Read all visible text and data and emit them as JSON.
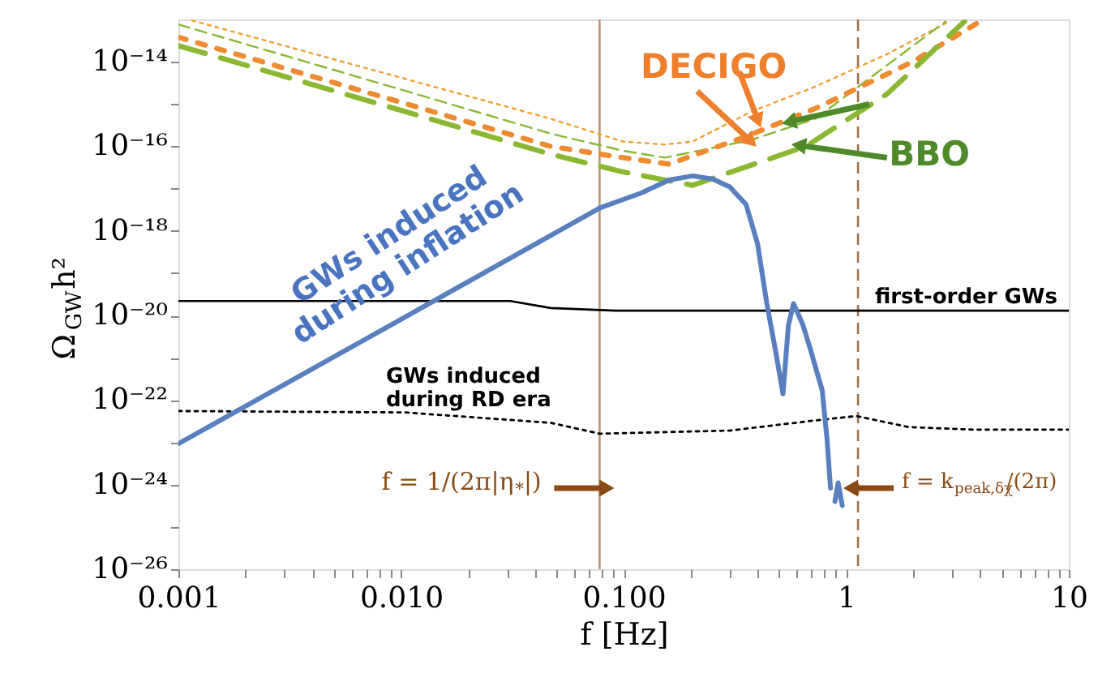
{
  "chart_data": {
    "type": "line",
    "xlabel": "f [Hz]",
    "ylabel": "Ω$_{GW}$h²",
    "log": "xy",
    "grid": false,
    "marker": "none",
    "xlim": [
      0.001,
      10
    ],
    "ylim": [
      1e-26,
      1e-13
    ],
    "xticks": [
      0.001,
      {
        "value": 0.002,
        "label": null
      },
      {
        "value": 0.003,
        "label": null
      },
      {
        "value": 0.004,
        "label": null
      },
      {
        "value": 0.005,
        "label": null
      },
      {
        "value": 0.006,
        "label": null
      },
      {
        "value": 0.007,
        "label": null
      },
      {
        "value": 0.008,
        "label": null
      },
      {
        "value": 0.009,
        "label": null
      },
      {
        "value": 0.01,
        "label": "0.010"
      },
      {
        "value": 0.02,
        "label": null
      },
      {
        "value": 0.03,
        "label": null
      },
      {
        "value": 0.04,
        "label": null
      },
      {
        "value": 0.05,
        "label": null
      },
      {
        "value": 0.06,
        "label": null
      },
      {
        "value": 0.07,
        "label": null
      },
      {
        "value": 0.08,
        "label": null
      },
      {
        "value": 0.09,
        "label": null
      },
      {
        "value": 0.1,
        "label": "0.100"
      },
      {
        "value": 0.2,
        "label": null
      },
      {
        "value": 0.3,
        "label": null
      },
      {
        "value": 0.4,
        "label": null
      },
      {
        "value": 0.5,
        "label": null
      },
      {
        "value": 0.6,
        "label": null
      },
      {
        "value": 0.7,
        "label": null
      },
      {
        "value": 0.8,
        "label": null
      },
      {
        "value": 0.9,
        "label": null
      },
      1,
      {
        "value": 2,
        "label": null
      },
      {
        "value": 3,
        "label": null
      },
      {
        "value": 4,
        "label": null
      },
      {
        "value": 5,
        "label": null
      },
      {
        "value": 6,
        "label": null
      },
      {
        "value": 7,
        "label": null
      },
      {
        "value": 8,
        "label": null
      },
      {
        "value": 9,
        "label": null
      },
      10
    ],
    "yticks": [
      {
        "value": 1e-26,
        "label": "10⁻²⁶"
      },
      {
        "value": 1e-25,
        "label": null
      },
      {
        "value": 1e-24,
        "label": "10⁻²⁴"
      },
      {
        "value": 1e-23,
        "label": null
      },
      {
        "value": 1e-22,
        "label": "10⁻²²"
      },
      {
        "value": 1e-21,
        "label": null
      },
      {
        "value": 1e-20,
        "label": "10⁻²⁰"
      },
      {
        "value": 1e-19,
        "label": null
      },
      {
        "value": 1e-18,
        "label": "10⁻¹⁸"
      },
      {
        "value": 1e-17,
        "label": null
      },
      {
        "value": 1e-16,
        "label": "10⁻¹⁶"
      },
      {
        "value": 1e-15,
        "label": null
      },
      {
        "value": 1e-14,
        "label": "10⁻¹⁴"
      }
    ],
    "series": [
      {
        "color": "#f0a030",
        "line_style": "dotted",
        "x": [
          0.00115,
          0.01,
          0.047,
          0.099,
          0.153,
          0.204,
          0.372,
          0.728,
          1.52,
          2.9
        ],
        "values": [
          9.5e-14,
          4.2e-15,
          4.5e-16,
          1.3e-16,
          1.1e-16,
          1.3e-16,
          6.5e-16,
          2.6e-15,
          1.5e-14,
          9e-14
        ]
      },
      {
        "color": "#8ab832",
        "line_style": "dashed",
        "x": [
          0.001,
          0.01,
          0.047,
          0.099,
          0.153,
          0.372,
          0.728,
          2.79
        ],
        "values": [
          7.6e-14,
          2.2e-15,
          2e-16,
          7.9e-17,
          5.4e-17,
          1.4e-16,
          4.5e-16,
          8.9e-14
        ]
      },
      {
        "color": "#ee8a2f",
        "line_style": "dotted",
        "x": [
          0.001,
          0.01,
          0.047,
          0.099,
          0.16,
          0.354,
          0.728,
          1.99,
          4.0
        ],
        "values": [
          3.8e-14,
          1.1e-15,
          1e-16,
          5.4e-17,
          3.8e-17,
          1.7e-16,
          7.9e-16,
          1e-14,
          9e-14
        ]
      },
      {
        "color": "#8ab832",
        "line_style": "dashed",
        "x": [
          0.001,
          0.01,
          0.047,
          0.099,
          0.204,
          0.659,
          1.52,
          3.4
        ],
        "values": [
          2.4e-14,
          7.1e-16,
          6.5e-17,
          2.5e-17,
          1.2e-17,
          1e-16,
          1.7e-15,
          9e-14
        ]
      },
      {
        "color": "#000000",
        "line_style": "solid",
        "x": [
          0.001,
          0.031,
          0.047,
          0.092,
          10
        ],
        "values": [
          2.2e-20,
          2.2e-20,
          1.5e-20,
          1.3e-20,
          1.3e-20
        ]
      },
      {
        "color": "#000000",
        "line_style": "dotted",
        "x": [
          0.001,
          0.0104,
          0.047,
          0.0783,
          0.3,
          0.69,
          1.11,
          1.9,
          3.7,
          10
        ],
        "values": [
          5.5e-23,
          5.1e-23,
          2.9e-23,
          1.6e-23,
          1.9e-23,
          3.2e-23,
          4.2e-23,
          2.3e-23,
          2e-23,
          2e-23
        ]
      },
      {
        "color": "#5a7fbf",
        "line_style": "solid",
        "x": [
          0.001,
          0.01,
          0.0783,
          0.12,
          0.16,
          0.205,
          0.25,
          0.3,
          0.355,
          0.4,
          0.44,
          0.48,
          0.52,
          0.55,
          0.58,
          0.64,
          0.69,
          0.78,
          0.82,
          0.85,
          0.87,
          0.89,
          0.92,
          0.96
        ],
        "values": [
          9.3e-24,
          8.1e-21,
          3.5e-18,
          7.9e-18,
          1.6e-17,
          2e-17,
          1.7e-17,
          1.1e-17,
          4.2e-18,
          4.9e-19,
          1.9e-20,
          1.6e-21,
          1.4e-22,
          5.9e-21,
          1.9e-20,
          5.9e-21,
          1.6e-21,
          1.7e-22,
          1.2e-23,
          8.3e-25,
          null,
          4e-25,
          1.1e-24,
          3.2e-25
        ]
      }
    ],
    "ref_lines": [
      {
        "axis": "x",
        "value": 0.078,
        "color": "#b99470",
        "line_style": "solid"
      },
      {
        "axis": "x",
        "value": 1.13,
        "color": "#a0704a",
        "line_style": "dashed"
      }
    ],
    "annotations": [
      {
        "text": "DECIGO",
        "x": 0.354,
        "y": 1.7e-16
      },
      {
        "text": "BBO",
        "x": 0.659,
        "y": 1e-16
      },
      "GWs induced\nduring inflation",
      "first-order GWs",
      "GWs induced\nduring RD era",
      {
        "text": "f = 1/(2π|η$_{*}$|)",
        "x": 0.078,
        "y": 8.3e-25
      },
      {
        "text": "f = k$_{peak,δχ}$/(2π)",
        "x": 1.13,
        "y": 8.3e-25
      }
    ]
  }
}
